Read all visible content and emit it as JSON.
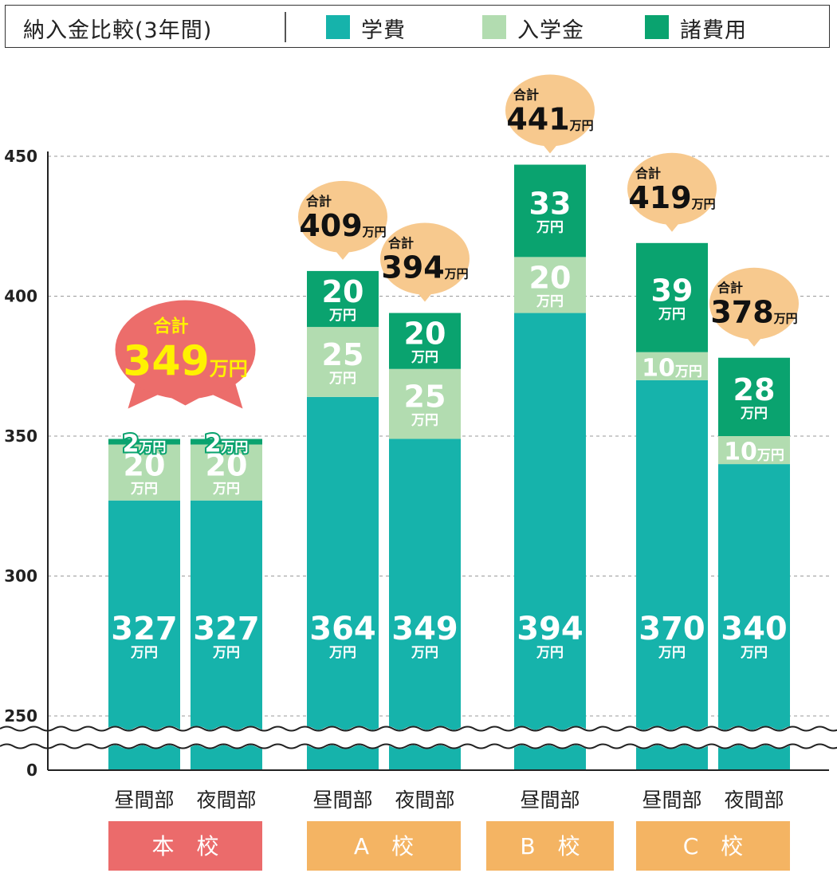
{
  "legend": {
    "title": "納入金比較(3年間)",
    "items": [
      {
        "label": "学費",
        "color": "#16b3ab"
      },
      {
        "label": "入学金",
        "color": "#b2dcb0"
      },
      {
        "label": "諸費用",
        "color": "#0aa36f"
      }
    ]
  },
  "chart_data": {
    "type": "bar",
    "stacked": true,
    "y_ticks": [
      "450",
      "400",
      "350",
      "300",
      "250",
      "0"
    ],
    "ylim": [
      250,
      450
    ],
    "axis_break": true,
    "grid": true,
    "unit": "万円",
    "total_label": "合計",
    "categories": [
      "昼間部",
      "夜間部",
      "昼間部",
      "夜間部",
      "昼間部",
      "昼間部",
      "夜間部"
    ],
    "groups": [
      {
        "label": "本　校",
        "color": "#eb6b6b",
        "bars": [
          0,
          1
        ]
      },
      {
        "label": "A　校",
        "color": "#f4b463",
        "bars": [
          2,
          3
        ]
      },
      {
        "label": "B　校",
        "color": "#f4b463",
        "bars": [
          4
        ]
      },
      {
        "label": "C　校",
        "color": "#f4b463",
        "bars": [
          5,
          6
        ]
      }
    ],
    "series": [
      {
        "name": "学費",
        "values": [
          327,
          327,
          364,
          349,
          394,
          370,
          340
        ]
      },
      {
        "name": "入学金",
        "values": [
          20,
          20,
          25,
          25,
          20,
          10,
          10
        ]
      },
      {
        "name": "諸費用",
        "values": [
          2,
          2,
          20,
          20,
          33,
          39,
          28
        ]
      }
    ],
    "totals": [
      349,
      409,
      394,
      441,
      419,
      378
    ],
    "total_bubbles": [
      {
        "bars": [
          0,
          1
        ],
        "value": 349
      },
      {
        "bars": [
          2
        ],
        "value": 409
      },
      {
        "bars": [
          3
        ],
        "value": 394
      },
      {
        "bars": [
          4
        ],
        "value": 441
      },
      {
        "bars": [
          5
        ],
        "value": 419
      },
      {
        "bars": [
          6
        ],
        "value": 378
      }
    ],
    "colors": {
      "tuition": "#16b3ab",
      "entrance": "#b2dcb0",
      "misc": "#0aa36f",
      "bubble_main": "#ec6d6b",
      "bubble_other": "#f7c98e",
      "bubble_main_text": "#fff200"
    }
  }
}
